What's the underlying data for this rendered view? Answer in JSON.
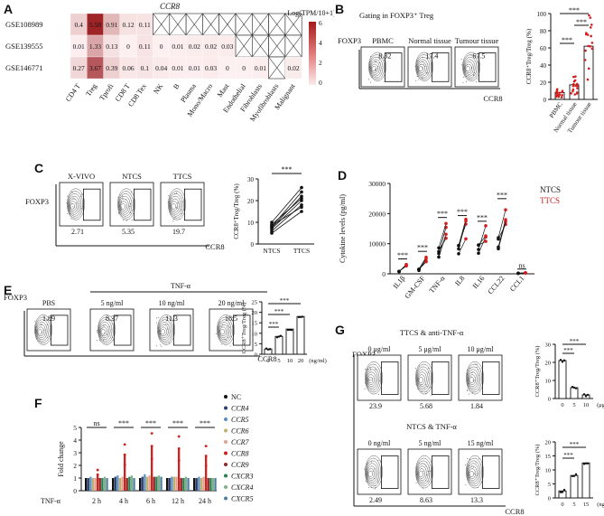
{
  "colors": {
    "red": "#d21f1f",
    "dark_red": "#b2182b",
    "black": "#111111",
    "grid": "#333333"
  },
  "panels": {
    "A": {
      "letter": "A",
      "title": "CCR8",
      "legend_title": "Log(TPM/10+1)",
      "legend_ticks": [
        "6",
        "4",
        "2",
        "0"
      ],
      "chart_data": {
        "type": "heatmap",
        "rows": [
          "GSE108989",
          "GSE139555",
          "GSE146771"
        ],
        "columns": [
          "CD4 T",
          "Treg",
          "Tprofi",
          "CD8 T",
          "CD8 Tex",
          "NK",
          "B",
          "Plasma",
          "Mono/Macro",
          "Mast",
          "Endothelial",
          "Fibroblasts",
          "Myofibroblasts",
          "Malignant"
        ],
        "values": [
          [
            "0.4",
            "5.58",
            "0.91",
            "0.12",
            "0.11",
            "",
            "",
            "",
            "",
            "",
            "",
            "",
            "",
            ""
          ],
          [
            "0.01",
            "1.33",
            "0.13",
            "0",
            "0.11",
            "0",
            "0.01",
            "0.02",
            "0.02",
            "0.03",
            "",
            "",
            "",
            ""
          ],
          [
            "0.27",
            "3.67",
            "0.39",
            "0.06",
            "0.1",
            "0.04",
            "0.01",
            "0.01",
            "0.03",
            "0",
            "0",
            "0.01",
            "",
            "0.02"
          ]
        ],
        "color_scale_range": [
          0,
          6
        ]
      }
    },
    "B": {
      "letter": "B",
      "header": "Gating in FOXP3⁺ Treg",
      "yaxis": "FOXP3",
      "xaxis": "CCR8",
      "facs": [
        {
          "name": "PBMC",
          "value": "8.32"
        },
        {
          "name": "Normal tissue",
          "value": "17.4"
        },
        {
          "name": "Tumour tissue",
          "value": "67.5"
        }
      ],
      "chart_data": {
        "type": "bar",
        "categories": [
          "PBMC",
          "Normal tissue",
          "Tumour tissue"
        ],
        "values": [
          8,
          17,
          62
        ],
        "ylabel": "CCR8⁺Treg/Treg (%)",
        "ylim": [
          0,
          100
        ],
        "yticks": [
          "0",
          "20",
          "40",
          "60",
          "80",
          "100"
        ],
        "significance": [
          "***",
          "***",
          "***"
        ]
      }
    },
    "C": {
      "letter": "C",
      "yaxis": "FOXP3",
      "xaxis": "CCR8",
      "facs": [
        {
          "name": "X-VIVO",
          "value": "2.71"
        },
        {
          "name": "NTCS",
          "value": "5.35"
        },
        {
          "name": "TTCS",
          "value": "19.7"
        }
      ],
      "chart_data": {
        "type": "scatter",
        "categories": [
          "NTCS",
          "TTCS"
        ],
        "ylabel": "CCR8⁺Treg/Treg (%)",
        "ylim": [
          0,
          30
        ],
        "yticks": [
          "0",
          "10",
          "20",
          "30"
        ],
        "significance": "***",
        "pairs": [
          [
            5,
            15
          ],
          [
            6,
            18
          ],
          [
            7,
            20
          ],
          [
            7.5,
            22
          ],
          [
            8,
            24
          ],
          [
            8.5,
            17
          ],
          [
            9,
            21
          ],
          [
            10,
            26
          ]
        ]
      }
    },
    "D": {
      "letter": "D",
      "legend": [
        "NTCS",
        "TTCS"
      ],
      "chart_data": {
        "type": "scatter",
        "categories": [
          "IL1β",
          "GM-CSF",
          "TNF-α",
          "IL8",
          "IL16",
          "CCL22",
          "CCL1"
        ],
        "ylabel": "Cytokine levels (pg/ml)",
        "ylim": [
          0,
          30000
        ],
        "yticks": [
          "0",
          "10000",
          "20000",
          "30000"
        ],
        "series": [
          {
            "name": "NTCS",
            "values": [
              800,
              1500,
              7000,
              8000,
              9000,
              11000,
              200
            ]
          },
          {
            "name": "TTCS",
            "values": [
              3000,
              5000,
              14000,
              14500,
              13000,
              19000,
              300
            ]
          }
        ],
        "significance": [
          "***",
          "***",
          "***",
          "***",
          "***",
          "***",
          "ns"
        ]
      }
    },
    "E": {
      "letter": "E",
      "yaxis": "FOXP3",
      "xaxis": "CCR8",
      "group_label": "TNF-α",
      "facs": [
        {
          "name": "PBS",
          "value": "1.89"
        },
        {
          "name": "5 ng/ml",
          "value": "8.37"
        },
        {
          "name": "10 ng/ml",
          "value": "11.3"
        },
        {
          "name": "20 ng/ml",
          "value": "18.5"
        }
      ],
      "chart_data": {
        "type": "bar",
        "categories": [
          "0",
          "5",
          "10",
          "20"
        ],
        "unit": "(ng/ml)",
        "values": [
          2.5,
          8.5,
          12,
          18
        ],
        "ylabel": "CCR8⁺Treg/Treg (%)",
        "ylim": [
          0,
          25
        ],
        "yticks": [
          "0",
          "5",
          "10",
          "15",
          "20",
          "25"
        ],
        "significance": [
          "***",
          "***",
          "***"
        ]
      }
    },
    "F": {
      "letter": "F",
      "chart_data": {
        "type": "bar",
        "categories": [
          "2 h",
          "4 h",
          "6 h",
          "12 h",
          "24 h"
        ],
        "row_label": "TNF-α",
        "ylabel": "Fold change",
        "ylim": [
          0,
          5
        ],
        "yticks": [
          "0",
          "1",
          "2",
          "3",
          "4",
          "5"
        ],
        "legend": [
          "NC",
          "CCR4",
          "CCR5",
          "CCR6",
          "CCR7",
          "CCR8",
          "CCR9",
          "CXCR3",
          "CXCR4",
          "CXCR5"
        ],
        "legend_colors": [
          "#111111",
          "#2c3e6e",
          "#5a8fc0",
          "#bfb071",
          "#e0a28d",
          "#d21f1f",
          "#8c2b2b",
          "#2e7d4f",
          "#7fb18a",
          "#4f7fa1"
        ],
        "series": [
          {
            "name": "NC",
            "values": [
              1,
              1,
              1,
              1,
              1
            ]
          },
          {
            "name": "CCR4",
            "values": [
              1.0,
              1.1,
              1.1,
              1.0,
              1.0
            ]
          },
          {
            "name": "CCR5",
            "values": [
              1.1,
              1.2,
              1.3,
              1.1,
              1.1
            ]
          },
          {
            "name": "CCR6",
            "values": [
              1.0,
              1.0,
              1.1,
              1.1,
              1.0
            ]
          },
          {
            "name": "CCR7",
            "values": [
              1.0,
              1.1,
              1.2,
              1.1,
              1.1
            ]
          },
          {
            "name": "CCR8",
            "values": [
              1.3,
              2.9,
              3.6,
              3.4,
              2.8
            ]
          },
          {
            "name": "CCR9",
            "values": [
              1.0,
              1.0,
              1.1,
              1.0,
              1.0
            ]
          },
          {
            "name": "CXCR3",
            "values": [
              1.0,
              1.1,
              1.1,
              1.0,
              1.0
            ]
          },
          {
            "name": "CXCR4",
            "values": [
              1.1,
              1.2,
              1.2,
              1.1,
              1.0
            ]
          },
          {
            "name": "CXCR5",
            "values": [
              1.0,
              1.0,
              1.1,
              1.0,
              1.0
            ]
          }
        ],
        "significance": [
          "ns",
          "***",
          "***",
          "***",
          "***"
        ]
      }
    },
    "G": {
      "letter": "G",
      "yaxis": "FOXP3",
      "xaxis": "CCR8",
      "top": {
        "header": "TTCS & anti-TNF-α",
        "facs": [
          {
            "name": "0 μg/ml",
            "value": "23.9"
          },
          {
            "name": "5 μg/ml",
            "value": "5.68"
          },
          {
            "name": "10 μg/ml",
            "value": "1.84"
          }
        ],
        "chart_data": {
          "type": "bar",
          "categories": [
            "0",
            "5",
            "10"
          ],
          "unit": "(μg/ml)",
          "values": [
            21,
            6,
            2
          ],
          "ylabel": "CCR8⁺Treg/Treg (%)",
          "ylim": [
            0,
            30
          ],
          "yticks": [
            "0",
            "10",
            "20",
            "30"
          ],
          "significance": [
            "***",
            "***"
          ]
        }
      },
      "bottom": {
        "header": "NTCS & TNF-α",
        "facs": [
          {
            "name": "0 ng/ml",
            "value": "2.49"
          },
          {
            "name": "5 ng/ml",
            "value": "8.63"
          },
          {
            "name": "15 ng/ml",
            "value": "13.3"
          }
        ],
        "chart_data": {
          "type": "bar",
          "categories": [
            "0",
            "5",
            "15"
          ],
          "unit": "(ng/ml)",
          "values": [
            2.5,
            8,
            12.5
          ],
          "ylabel": "CCR8⁺Treg/Treg (%)",
          "ylim": [
            0,
            20
          ],
          "yticks": [
            "0",
            "5",
            "10",
            "15",
            "20"
          ],
          "significance": [
            "***",
            "***"
          ]
        }
      }
    }
  }
}
